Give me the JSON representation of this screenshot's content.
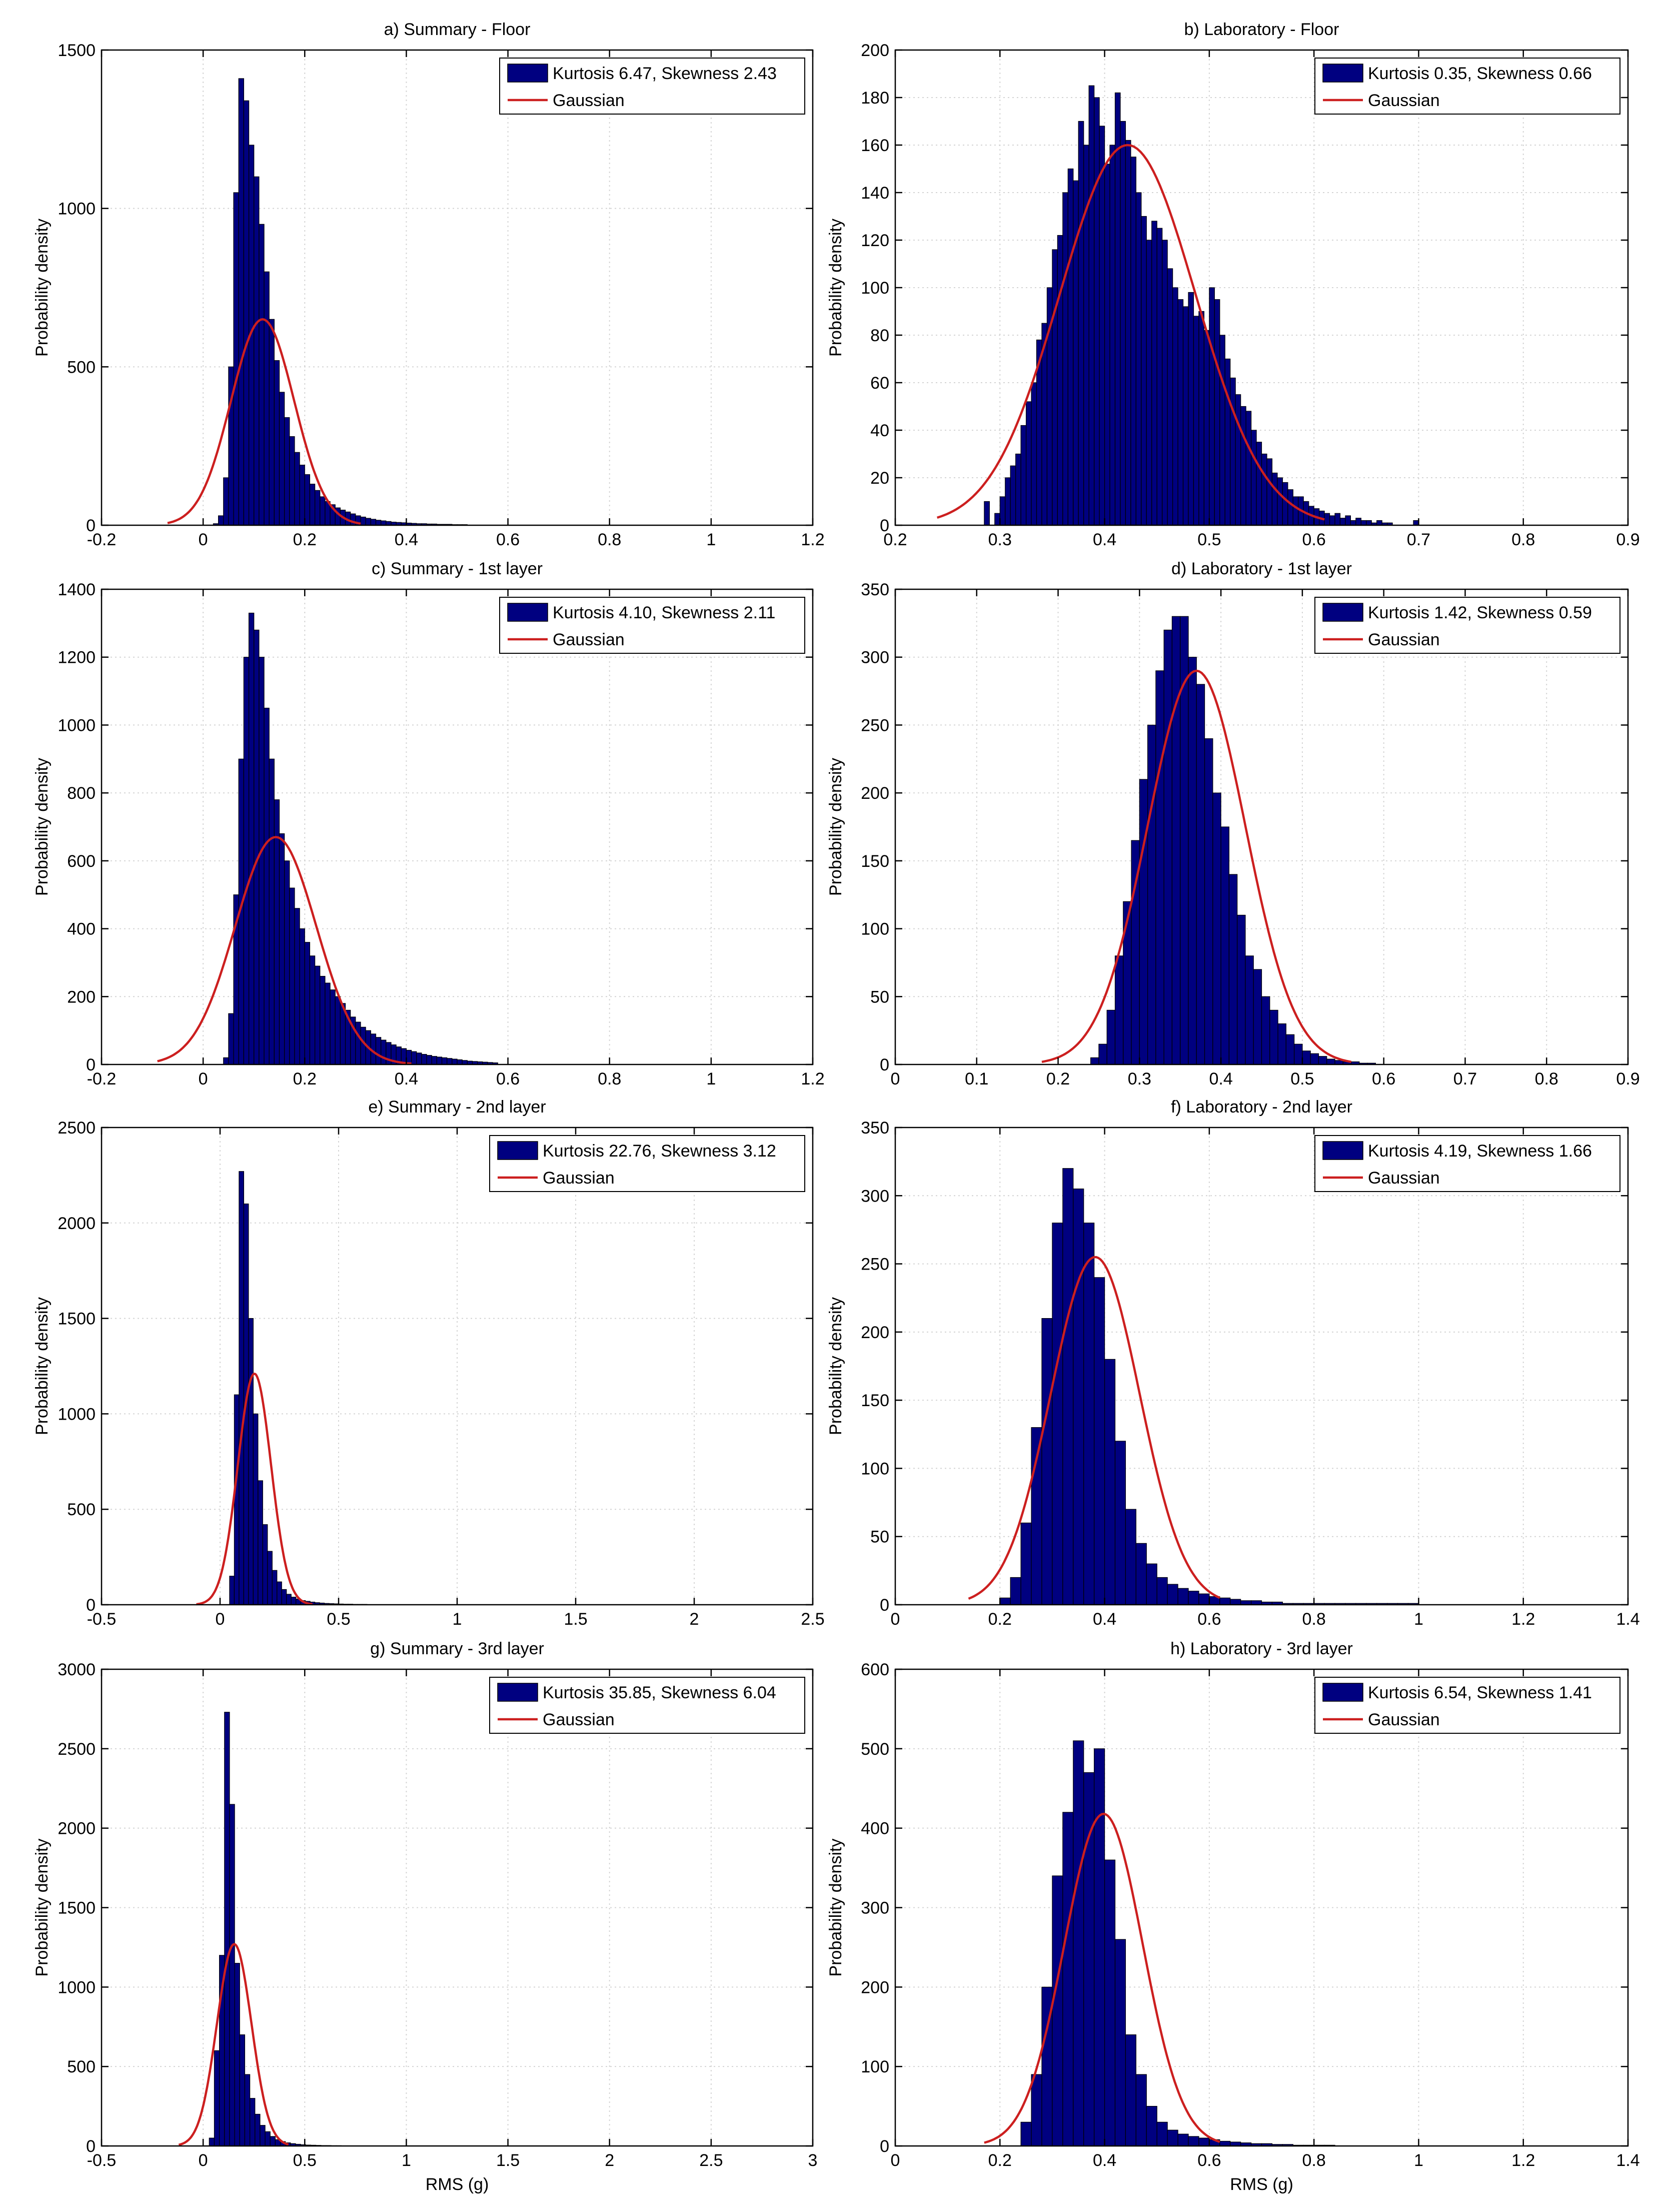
{
  "figure": {
    "ylabel": "Probability density",
    "xlabel": "RMS (g)",
    "colors": {
      "bar": "#000080",
      "gaussian": "#cc1f1f",
      "grid": "#d4d4d4",
      "axis": "#000000"
    }
  },
  "chart_data": [
    {
      "type": "bar",
      "id": "a",
      "title": "a) Summary - Floor",
      "ylabel": "Probability density",
      "xlabel": "",
      "xlim": [
        -0.2,
        1.2
      ],
      "ylim": [
        0,
        1500
      ],
      "xticks": [
        -0.2,
        0,
        0.2,
        0.4,
        0.6,
        0.8,
        1,
        1.2
      ],
      "xticklabels": [
        "-0.2",
        "0",
        "0.2",
        "0.4",
        "0.6",
        "0.8",
        "1",
        "1.2"
      ],
      "yticks": [
        0,
        500,
        1000,
        1500
      ],
      "yticklabels": [
        "0",
        "500",
        "1000",
        "1500"
      ],
      "grid": true,
      "legend_position": "top-right",
      "series": [
        {
          "name": "Kurtosis 6.47, Skewness 2.43",
          "kind": "histogram",
          "bin_width": 0.01,
          "bin_start": 0.02,
          "values": [
            5,
            30,
            150,
            500,
            1050,
            1410,
            1340,
            1200,
            1100,
            950,
            800,
            650,
            520,
            420,
            340,
            280,
            230,
            190,
            160,
            130,
            110,
            90,
            75,
            65,
            55,
            48,
            42,
            36,
            30,
            26,
            22,
            19,
            16,
            14,
            12,
            10,
            9,
            8,
            7,
            6,
            5,
            5,
            4,
            4,
            3,
            3,
            3,
            2,
            2,
            2
          ]
        },
        {
          "name": "Gaussian",
          "kind": "gaussian",
          "mu": 0.117,
          "peak": 650,
          "sigma": 0.062,
          "x_range": [
            -0.07,
            0.31
          ]
        }
      ]
    },
    {
      "type": "bar",
      "id": "b",
      "title": "b) Laboratory - Floor",
      "ylabel": "Probability density",
      "xlabel": "",
      "xlim": [
        0.2,
        0.9
      ],
      "ylim": [
        0,
        200
      ],
      "xticks": [
        0.2,
        0.3,
        0.4,
        0.5,
        0.6,
        0.7,
        0.8,
        0.9
      ],
      "xticklabels": [
        "0.2",
        "0.3",
        "0.4",
        "0.5",
        "0.6",
        "0.7",
        "0.8",
        "0.9"
      ],
      "yticks": [
        0,
        20,
        40,
        60,
        80,
        100,
        120,
        140,
        160,
        180,
        200
      ],
      "yticklabels": [
        "0",
        "20",
        "40",
        "60",
        "80",
        "100",
        "120",
        "140",
        "160",
        "180",
        "200"
      ],
      "grid": true,
      "legend_position": "top-right",
      "series": [
        {
          "name": "Kurtosis 0.35, Skewness 0.66",
          "kind": "histogram",
          "bin_width": 0.005,
          "bin_start": 0.285,
          "values": [
            10,
            0,
            5,
            12,
            20,
            25,
            30,
            42,
            52,
            60,
            78,
            85,
            100,
            116,
            122,
            140,
            150,
            145,
            170,
            160,
            185,
            180,
            168,
            152,
            160,
            182,
            170,
            162,
            155,
            140,
            130,
            120,
            128,
            125,
            120,
            108,
            100,
            95,
            92,
            98,
            88,
            90,
            82,
            100,
            95,
            80,
            70,
            62,
            55,
            50,
            48,
            40,
            35,
            30,
            28,
            22,
            20,
            18,
            15,
            12,
            12,
            10,
            8,
            7,
            6,
            5,
            4,
            5,
            3,
            4,
            2,
            3,
            2,
            2,
            1,
            2,
            1,
            1,
            0,
            0,
            0,
            0,
            2
          ]
        },
        {
          "name": "Gaussian",
          "kind": "gaussian",
          "mu": 0.422,
          "peak": 160,
          "sigma": 0.065,
          "x_range": [
            0.24,
            0.61
          ]
        }
      ]
    },
    {
      "type": "bar",
      "id": "c",
      "title": "c) Summary - 1st layer",
      "ylabel": "Probability density",
      "xlabel": "",
      "xlim": [
        -0.2,
        1.2
      ],
      "ylim": [
        0,
        1400
      ],
      "xticks": [
        -0.2,
        0,
        0.2,
        0.4,
        0.6,
        0.8,
        1,
        1.2
      ],
      "xticklabels": [
        "-0.2",
        "0",
        "0.2",
        "0.4",
        "0.6",
        "0.8",
        "1",
        "1.2"
      ],
      "yticks": [
        0,
        200,
        400,
        600,
        800,
        1000,
        1200,
        1400
      ],
      "yticklabels": [
        "0",
        "200",
        "400",
        "600",
        "800",
        "1000",
        "1200",
        "1400"
      ],
      "grid": true,
      "legend_position": "top-right",
      "series": [
        {
          "name": "Kurtosis 4.10, Skewness 2.11",
          "kind": "histogram",
          "bin_width": 0.01,
          "bin_start": 0.04,
          "values": [
            20,
            150,
            500,
            900,
            1200,
            1330,
            1280,
            1200,
            1050,
            900,
            780,
            680,
            600,
            520,
            460,
            400,
            360,
            320,
            290,
            260,
            240,
            220,
            200,
            180,
            160,
            140,
            125,
            110,
            100,
            90,
            80,
            72,
            65,
            58,
            52,
            47,
            42,
            38,
            34,
            30,
            27,
            24,
            22,
            20,
            18,
            16,
            14,
            12,
            10,
            9,
            8,
            7,
            6,
            5
          ]
        },
        {
          "name": "Gaussian",
          "kind": "gaussian",
          "mu": 0.143,
          "peak": 670,
          "sigma": 0.08,
          "x_range": [
            -0.09,
            0.41
          ]
        }
      ]
    },
    {
      "type": "bar",
      "id": "d",
      "title": "d) Laboratory - 1st layer",
      "ylabel": "Probability density",
      "xlabel": "",
      "xlim": [
        0,
        0.9
      ],
      "ylim": [
        0,
        350
      ],
      "xticks": [
        0,
        0.1,
        0.2,
        0.3,
        0.4,
        0.5,
        0.6,
        0.7,
        0.8,
        0.9
      ],
      "xticklabels": [
        "0",
        "0.1",
        "0.2",
        "0.3",
        "0.4",
        "0.5",
        "0.6",
        "0.7",
        "0.8",
        "0.9"
      ],
      "yticks": [
        0,
        50,
        100,
        150,
        200,
        250,
        300,
        350
      ],
      "yticklabels": [
        "0",
        "50",
        "100",
        "150",
        "200",
        "250",
        "300",
        "350"
      ],
      "grid": true,
      "legend_position": "top-right",
      "series": [
        {
          "name": "Kurtosis 1.42, Skewness 0.59",
          "kind": "histogram",
          "bin_width": 0.01,
          "bin_start": 0.24,
          "values": [
            5,
            15,
            40,
            80,
            120,
            165,
            210,
            250,
            290,
            320,
            330,
            330,
            300,
            280,
            240,
            200,
            175,
            140,
            110,
            80,
            70,
            50,
            40,
            30,
            22,
            15,
            10,
            8,
            6,
            4,
            3,
            2,
            2,
            1,
            1
          ]
        },
        {
          "name": "Gaussian",
          "kind": "gaussian",
          "mu": 0.37,
          "peak": 290,
          "sigma": 0.06,
          "x_range": [
            0.18,
            0.56
          ]
        }
      ]
    },
    {
      "type": "bar",
      "id": "e",
      "title": "e) Summary - 2nd layer",
      "ylabel": "Probability density",
      "xlabel": "",
      "xlim": [
        -0.5,
        2.5
      ],
      "ylim": [
        0,
        2500
      ],
      "xticks": [
        -0.5,
        0,
        0.5,
        1,
        1.5,
        2,
        2.5
      ],
      "xticklabels": [
        "-0.5",
        "0",
        "0.5",
        "1",
        "1.5",
        "2",
        "2.5"
      ],
      "yticks": [
        0,
        500,
        1000,
        1500,
        2000,
        2500
      ],
      "yticklabels": [
        "0",
        "500",
        "1000",
        "1500",
        "2000",
        "2500"
      ],
      "grid": true,
      "legend_position": "top-right",
      "series": [
        {
          "name": "Kurtosis 22.76, Skewness 3.12",
          "kind": "histogram",
          "bin_width": 0.02,
          "bin_start": 0.04,
          "values": [
            150,
            1100,
            2270,
            2100,
            1500,
            1000,
            650,
            420,
            280,
            180,
            120,
            80,
            55,
            40,
            30,
            22,
            18,
            14,
            11,
            9,
            7,
            6,
            5,
            4,
            3,
            3,
            2,
            2,
            2,
            1
          ]
        },
        {
          "name": "Gaussian",
          "kind": "gaussian",
          "mu": 0.145,
          "peak": 1210,
          "sigma": 0.07,
          "x_range": [
            -0.1,
            0.39
          ]
        }
      ]
    },
    {
      "type": "bar",
      "id": "f",
      "title": "f) Laboratory - 2nd layer",
      "ylabel": "Probability density",
      "xlabel": "",
      "xlim": [
        0,
        1.4
      ],
      "ylim": [
        0,
        350
      ],
      "xticks": [
        0,
        0.2,
        0.4,
        0.6,
        0.8,
        1,
        1.2,
        1.4
      ],
      "xticklabels": [
        "0",
        "0.2",
        "0.4",
        "0.6",
        "0.8",
        "1",
        "1.2",
        "1.4"
      ],
      "yticks": [
        0,
        50,
        100,
        150,
        200,
        250,
        300,
        350
      ],
      "yticklabels": [
        "0",
        "50",
        "100",
        "150",
        "200",
        "250",
        "300",
        "350"
      ],
      "grid": true,
      "legend_position": "top-right",
      "series": [
        {
          "name": "Kurtosis 4.19, Skewness 1.66",
          "kind": "histogram",
          "bin_width": 0.02,
          "bin_start": 0.2,
          "values": [
            5,
            20,
            60,
            130,
            210,
            280,
            320,
            305,
            280,
            240,
            180,
            120,
            70,
            45,
            30,
            20,
            15,
            12,
            10,
            8,
            6,
            5,
            4,
            3,
            3,
            2,
            2,
            1,
            1,
            1,
            1,
            1,
            1,
            1,
            1,
            1,
            1,
            1,
            1,
            1
          ]
        },
        {
          "name": "Gaussian",
          "kind": "gaussian",
          "mu": 0.382,
          "peak": 255,
          "sigma": 0.085,
          "x_range": [
            0.14,
            0.62
          ]
        }
      ]
    },
    {
      "type": "bar",
      "id": "g",
      "title": "g) Summary - 3rd layer",
      "ylabel": "Probability density",
      "xlabel": "RMS (g)",
      "xlim": [
        -0.5,
        3
      ],
      "ylim": [
        0,
        3000
      ],
      "xticks": [
        -0.5,
        0,
        0.5,
        1,
        1.5,
        2,
        2.5,
        3
      ],
      "xticklabels": [
        "-0.5",
        "0",
        "0.5",
        "1",
        "1.5",
        "2",
        "2.5",
        "3"
      ],
      "yticks": [
        0,
        500,
        1000,
        1500,
        2000,
        2500,
        3000
      ],
      "yticklabels": [
        "0",
        "500",
        "1000",
        "1500",
        "2000",
        "2500",
        "3000"
      ],
      "grid": true,
      "legend_position": "top-right",
      "series": [
        {
          "name": "Kurtosis 35.85, Skewness 6.04",
          "kind": "histogram",
          "bin_width": 0.025,
          "bin_start": 0.03,
          "values": [
            50,
            600,
            1200,
            2730,
            2150,
            1150,
            700,
            450,
            300,
            200,
            130,
            90,
            60,
            40,
            28,
            20,
            15,
            11,
            8,
            6,
            5,
            4,
            3,
            3,
            2,
            2,
            1
          ]
        },
        {
          "name": "Gaussian",
          "kind": "gaussian",
          "mu": 0.153,
          "peak": 1270,
          "sigma": 0.085,
          "x_range": [
            -0.12,
            0.42
          ]
        }
      ]
    },
    {
      "type": "bar",
      "id": "h",
      "title": "h) Laboratory - 3rd layer",
      "ylabel": "Probability density",
      "xlabel": "RMS (g)",
      "xlim": [
        0,
        1.4
      ],
      "ylim": [
        0,
        600
      ],
      "xticks": [
        0,
        0.2,
        0.4,
        0.6,
        0.8,
        1,
        1.2,
        1.4
      ],
      "xticklabels": [
        "0",
        "0.2",
        "0.4",
        "0.6",
        "0.8",
        "1",
        "1.2",
        "1.4"
      ],
      "yticks": [
        0,
        100,
        200,
        300,
        400,
        500,
        600
      ],
      "yticklabels": [
        "0",
        "100",
        "200",
        "300",
        "400",
        "500",
        "600"
      ],
      "grid": true,
      "legend_position": "top-right",
      "series": [
        {
          "name": "Kurtosis 6.54, Skewness 1.41",
          "kind": "histogram",
          "bin_width": 0.02,
          "bin_start": 0.24,
          "values": [
            30,
            90,
            200,
            340,
            420,
            510,
            470,
            500,
            360,
            260,
            140,
            90,
            50,
            30,
            20,
            15,
            12,
            10,
            8,
            6,
            5,
            4,
            3,
            3,
            2,
            2,
            1,
            1,
            1,
            1
          ]
        },
        {
          "name": "Gaussian",
          "kind": "gaussian",
          "mu": 0.398,
          "peak": 418,
          "sigma": 0.075,
          "x_range": [
            0.17,
            0.62
          ]
        }
      ]
    }
  ]
}
